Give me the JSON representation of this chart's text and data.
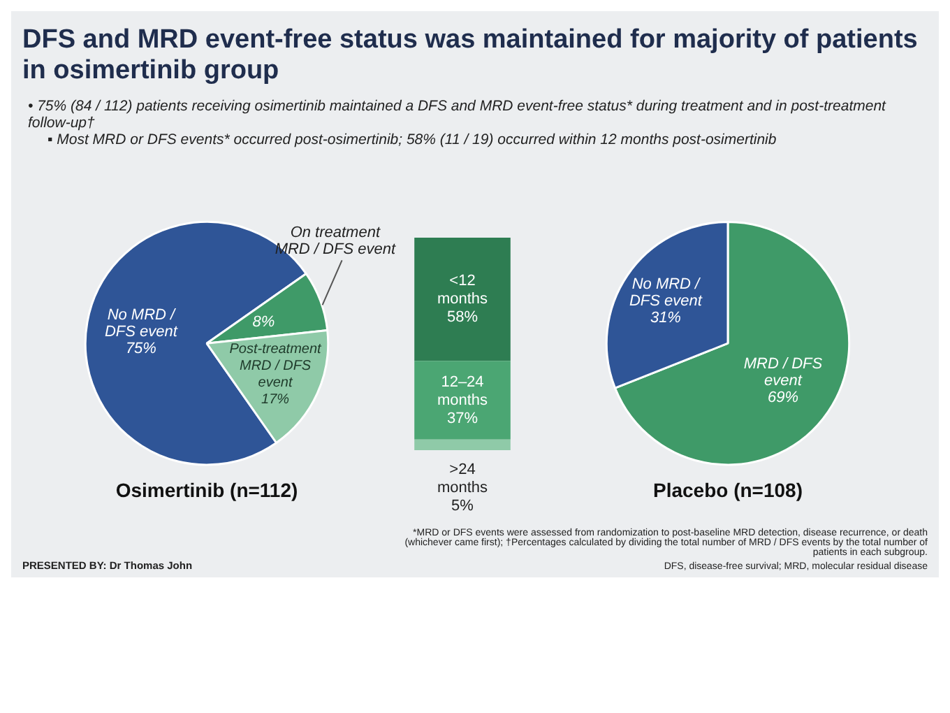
{
  "chart_data": [
    {
      "type": "other",
      "title": "DFS and MRD event-free status was maintained for majority of patients in osimertinib group",
      "annotations": [
        "• 75% (84 / 112) patients receiving osimertinib maintained a DFS and MRD event-free status* during treatment and in post-treatment follow-up†",
        "▪ Most MRD or DFS events* occurred post-osimertinib; 58% (11 / 19) occurred within 12 months post-osimertinib",
        "*MRD or DFS events were assessed from randomization to post-baseline MRD detection, disease recurrence, or death (whichever came first); †Percentages calculated by dividing the total number of MRD / DFS events by the total number of patients in each subgroup.",
        "DFS, disease-free survival; MRD, molecular residual disease",
        "PRESENTED BY: Dr Thomas John"
      ]
    },
    {
      "type": "pie",
      "title": "Osimertinib (n=112)",
      "categories": [
        "No MRD / DFS event",
        "On treatment MRD / DFS event",
        "Post-treatment MRD / DFS event"
      ],
      "values": [
        75,
        8,
        17
      ],
      "colors": [
        "#2f5597",
        "#3f9a68",
        "#8fcaa8"
      ],
      "value_labels": [
        "75%",
        "8%",
        "17%"
      ],
      "legend": false
    },
    {
      "type": "bar",
      "stacked": true,
      "categories": [
        null
      ],
      "legend": false,
      "series": [
        {
          "name": ">24 months",
          "color": "#8fcaa8",
          "values": [
            5
          ],
          "value_labels": [
            "5%"
          ]
        },
        {
          "name": "12–24 months",
          "color": "#4ba673",
          "values": [
            37
          ],
          "value_labels": [
            "37%"
          ]
        },
        {
          "name": "<12 months",
          "color": "#2e7d52",
          "values": [
            58
          ],
          "value_labels": [
            "58%"
          ]
        }
      ]
    },
    {
      "type": "pie",
      "title": "Placebo (n=108)",
      "categories": [
        "MRD / DFS event",
        "No MRD / DFS event"
      ],
      "values": [
        69,
        31
      ],
      "colors": [
        "#3f9a68",
        "#2f5597"
      ],
      "value_labels": [
        "69%",
        "31%"
      ],
      "legend": false
    }
  ]
}
